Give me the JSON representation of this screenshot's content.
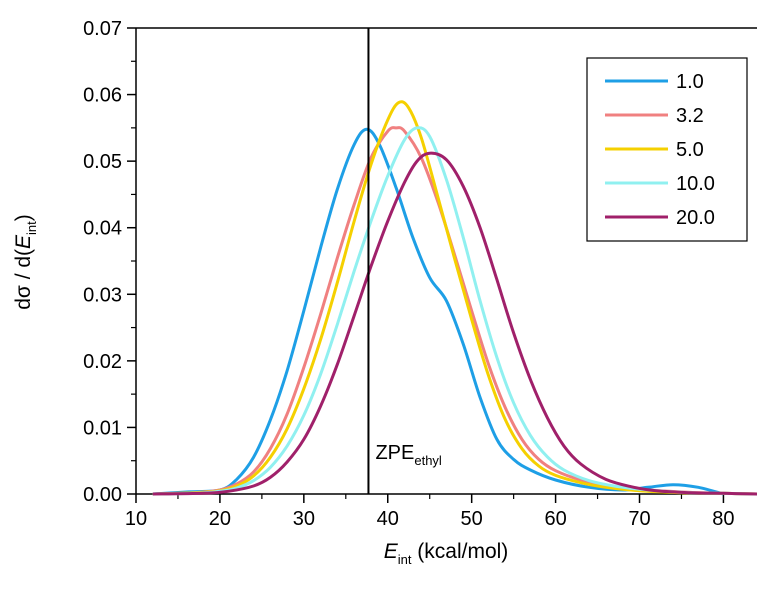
{
  "chart_data": {
    "type": "line",
    "title": "",
    "xlabel": {
      "main": "E",
      "sub": "int",
      "rest": " (kcal/mol)"
    },
    "ylabel": {
      "pre": "dσ / d(",
      "main": "E",
      "sub": "int",
      "post": ")"
    },
    "xlim": [
      10,
      84
    ],
    "ylim": [
      0,
      0.07
    ],
    "xticks": [
      10,
      20,
      30,
      40,
      50,
      60,
      70,
      80
    ],
    "xtick_labels": [
      "10",
      "20",
      "30",
      "40",
      "50",
      "60",
      "70",
      "80"
    ],
    "yticks": [
      0,
      0.01,
      0.02,
      0.03,
      0.04,
      0.05,
      0.06,
      0.07
    ],
    "ytick_labels": [
      "0.00",
      "0.01",
      "0.02",
      "0.03",
      "0.04",
      "0.05",
      "0.06",
      "0.07"
    ],
    "legend_position": "top-right",
    "grid": false,
    "annotation": {
      "main": "ZPE",
      "sub": "ethyl",
      "x": 37.7
    },
    "series": [
      {
        "name": "1.0",
        "color": "#1E9FE6",
        "x": [
          12,
          16,
          20,
          22,
          24,
          26,
          28,
          30,
          32,
          34,
          36,
          37.5,
          39,
          41,
          43,
          45,
          47,
          49,
          51,
          53,
          55,
          57,
          60,
          64,
          68,
          71,
          74,
          77,
          80
        ],
        "y": [
          0.0,
          0.0003,
          0.0006,
          0.0022,
          0.0055,
          0.0111,
          0.0185,
          0.0275,
          0.037,
          0.0458,
          0.0525,
          0.0548,
          0.0525,
          0.046,
          0.0385,
          0.0325,
          0.029,
          0.0225,
          0.0145,
          0.0082,
          0.0052,
          0.0036,
          0.0021,
          0.001,
          0.0006,
          0.001,
          0.0014,
          0.001,
          0.0
        ]
      },
      {
        "name": "3.2",
        "color": "#F08080",
        "x": [
          12,
          17,
          20,
          22,
          24,
          26,
          28,
          30,
          32,
          34,
          36,
          38,
          40,
          41,
          42,
          44,
          46,
          48,
          50,
          52,
          54,
          56,
          58,
          60,
          63,
          66,
          70,
          75,
          80,
          84
        ],
        "y": [
          0.0,
          0.0002,
          0.0006,
          0.0015,
          0.0033,
          0.0068,
          0.012,
          0.019,
          0.027,
          0.0355,
          0.0435,
          0.0505,
          0.0545,
          0.055,
          0.0545,
          0.0505,
          0.0438,
          0.0358,
          0.0275,
          0.0195,
          0.013,
          0.0082,
          0.0052,
          0.0035,
          0.0021,
          0.0013,
          0.0007,
          0.0003,
          0.0001,
          0.0
        ]
      },
      {
        "name": "5.0",
        "color": "#F5D000",
        "x": [
          12,
          17,
          20,
          22,
          24,
          26,
          28,
          30,
          32,
          34,
          36,
          38,
          40,
          41.3,
          42.5,
          44,
          46,
          48,
          50,
          52,
          54,
          56,
          58,
          60,
          63,
          66,
          70,
          75,
          80,
          84
        ],
        "y": [
          0.0,
          0.0002,
          0.0005,
          0.0012,
          0.0027,
          0.0055,
          0.0098,
          0.0158,
          0.0232,
          0.0318,
          0.041,
          0.0495,
          0.0562,
          0.0588,
          0.058,
          0.0535,
          0.0445,
          0.0352,
          0.0262,
          0.0178,
          0.0112,
          0.0068,
          0.0042,
          0.0028,
          0.0017,
          0.001,
          0.0005,
          0.0002,
          0.0001,
          0.0
        ]
      },
      {
        "name": "10.0",
        "color": "#90F0F0",
        "x": [
          12,
          17,
          20,
          22,
          24,
          26,
          28,
          30,
          32,
          34,
          36,
          38,
          40,
          42,
          43.5,
          45,
          47,
          49,
          51,
          53,
          55,
          57,
          59,
          61,
          64,
          67,
          71,
          76,
          80,
          84
        ],
        "y": [
          0.0,
          0.0001,
          0.0004,
          0.0009,
          0.002,
          0.004,
          0.0072,
          0.0118,
          0.018,
          0.0255,
          0.0335,
          0.041,
          0.0478,
          0.0532,
          0.055,
          0.0537,
          0.0472,
          0.0385,
          0.029,
          0.0205,
          0.0137,
          0.0088,
          0.0056,
          0.0036,
          0.002,
          0.0012,
          0.0006,
          0.0002,
          0.0001,
          0.0
        ]
      },
      {
        "name": "20.0",
        "color": "#A0206A",
        "x": [
          12,
          18,
          21,
          24,
          26,
          28,
          30,
          32,
          34,
          36,
          38,
          40,
          42,
          43.5,
          45,
          47,
          49,
          51,
          53,
          55,
          57,
          59,
          61,
          63,
          66,
          69,
          72,
          76,
          80,
          84
        ],
        "y": [
          0.0,
          0.0001,
          0.0004,
          0.0012,
          0.0025,
          0.0048,
          0.0082,
          0.0132,
          0.0195,
          0.0268,
          0.0342,
          0.041,
          0.0468,
          0.05,
          0.0512,
          0.0502,
          0.0462,
          0.04,
          0.0322,
          0.0242,
          0.0172,
          0.0115,
          0.0072,
          0.0045,
          0.0022,
          0.0011,
          0.0005,
          0.0002,
          0.0001,
          0.0
        ]
      }
    ]
  }
}
